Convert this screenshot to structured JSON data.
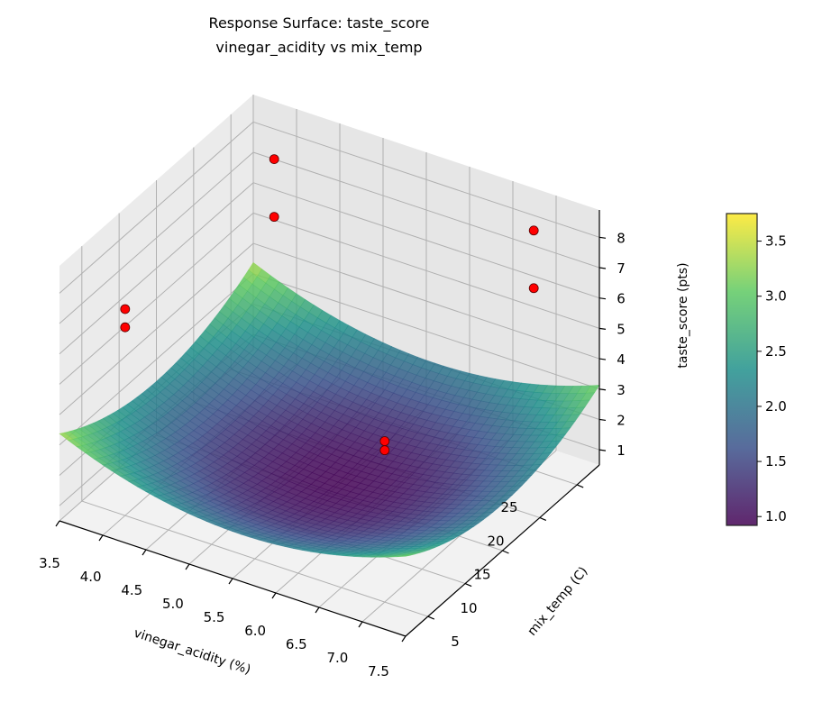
{
  "chart_data": {
    "type": "surface3d",
    "title": "Response Surface: taste_score",
    "subtitle": "vinegar_acidity vs mix_temp",
    "xlabel": "vinegar_acidity (%)",
    "ylabel": "mix_temp (C)",
    "zlabel": "taste_score (pts)",
    "xlim": [
      3.5,
      7.5
    ],
    "ylim": [
      2,
      28
    ],
    "zlim": [
      0.5,
      8.9
    ],
    "x_ticks": [
      "3.5",
      "4.0",
      "4.5",
      "5.0",
      "5.5",
      "6.0",
      "6.5",
      "7.0",
      "7.5"
    ],
    "y_ticks": [
      "5",
      "10",
      "15",
      "20",
      "25"
    ],
    "z_ticks": [
      "1",
      "2",
      "3",
      "4",
      "5",
      "6",
      "7",
      "8"
    ],
    "grid": true,
    "colormap": "viridis",
    "surface_model": {
      "z_min": 0.95,
      "x_center": 5.6,
      "y_center": 15,
      "x_coef": 0.3,
      "y_coef": 0.0065
    },
    "points": [
      {
        "x": 4.0,
        "y": 5,
        "z": 7.3
      },
      {
        "x": 4.0,
        "y": 5,
        "z": 6.7
      },
      {
        "x": 4.0,
        "y": 25,
        "z": 7.9
      },
      {
        "x": 4.0,
        "y": 25,
        "z": 6.0
      },
      {
        "x": 7.0,
        "y": 25,
        "z": 8.4
      },
      {
        "x": 7.0,
        "y": 25,
        "z": 6.5
      },
      {
        "x": 7.0,
        "y": 5,
        "z": 5.8
      },
      {
        "x": 7.0,
        "y": 5,
        "z": 5.5
      }
    ],
    "point_color": "#ff0000",
    "colorbar": {
      "range": [
        0.92,
        3.75
      ],
      "ticks": [
        "1.0",
        "1.5",
        "2.0",
        "2.5",
        "3.0",
        "3.5"
      ]
    }
  }
}
